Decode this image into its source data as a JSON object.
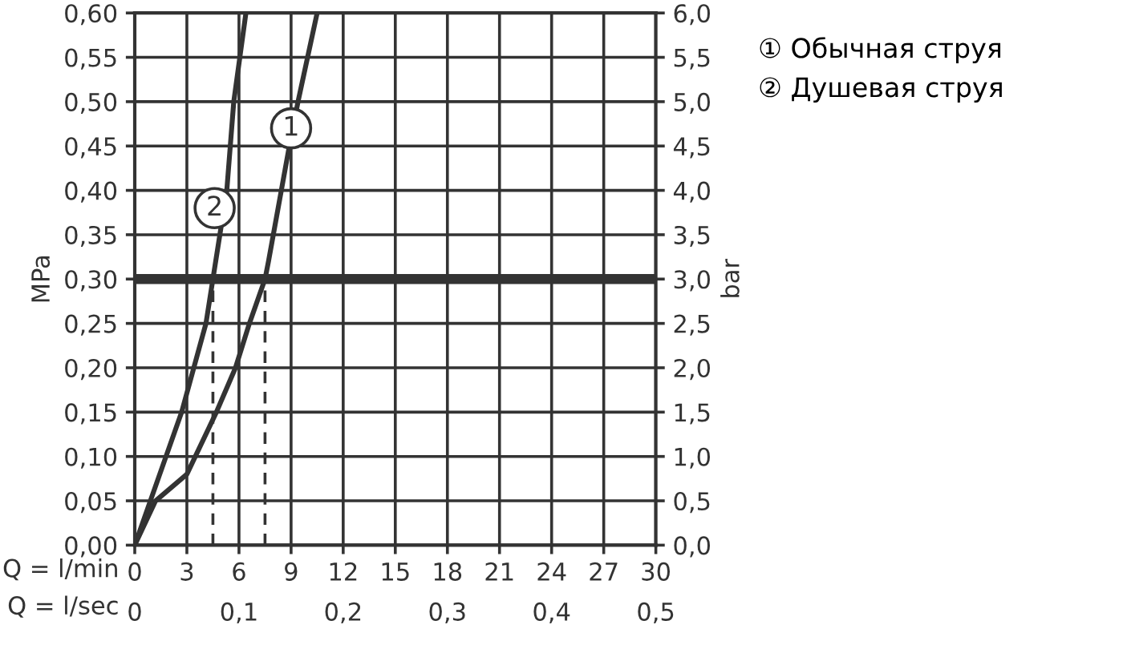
{
  "chart_data": {
    "type": "line",
    "xlabel": "Q = l/min",
    "x2label": "Q = l/sec",
    "ylabel": "MPa",
    "y2label": "bar",
    "series": [
      {
        "name": "① Обычная струя",
        "color": "#333333",
        "x": [
          0,
          1.2,
          3,
          4.7,
          5.8,
          6.6,
          7.5,
          7.7,
          8.9,
          9.4,
          10.5
        ],
        "values": [
          0,
          0.05,
          0.08,
          0.15,
          0.2,
          0.25,
          0.3,
          0.32,
          0.45,
          0.5,
          0.6
        ]
      },
      {
        "name": "② Душевая струя",
        "color": "#333333",
        "x": [
          0,
          2.7,
          4.1,
          4.5,
          5.3,
          5.7,
          6.4
        ],
        "values": [
          0,
          0.15,
          0.25,
          0.3,
          0.4,
          0.5,
          0.6
        ]
      }
    ],
    "annotations": [
      {
        "text": "1",
        "x": 9.0,
        "y": 0.47
      },
      {
        "text": "2",
        "x": 4.6,
        "y": 0.38
      }
    ],
    "ref_lines": [
      {
        "axis": "y",
        "value": 0.3,
        "color": "#333333",
        "line_style": "solid"
      },
      {
        "axis": "x",
        "value": 4.5,
        "color": "#333333",
        "line_style": "dashed"
      },
      {
        "axis": "x",
        "value": 7.5,
        "color": "#333333",
        "line_style": "dashed"
      }
    ],
    "xlim": [
      0,
      30
    ],
    "xticks": [
      0,
      3,
      6,
      9,
      12,
      15,
      18,
      21,
      24,
      27,
      30
    ],
    "x2lim": [
      0,
      0.5
    ],
    "x2ticks": [
      0,
      {
        "value": 0.1,
        "label": "0,1"
      },
      {
        "value": 0.2,
        "label": "0,2"
      },
      {
        "value": 0.3,
        "label": "0,3"
      },
      {
        "value": 0.4,
        "label": "0,4"
      },
      {
        "value": 0.5,
        "label": "0,5"
      }
    ],
    "ylim": [
      0,
      0.6
    ],
    "yticks": [
      {
        "value": 0,
        "label": "0,00"
      },
      {
        "value": 0.05,
        "label": "0,05"
      },
      {
        "value": 0.1,
        "label": "0,10"
      },
      {
        "value": 0.15,
        "label": "0,15"
      },
      {
        "value": 0.2,
        "label": "0,20"
      },
      {
        "value": 0.25,
        "label": "0,25"
      },
      {
        "value": 0.3,
        "label": "0,30"
      },
      {
        "value": 0.35,
        "label": "0,35"
      },
      {
        "value": 0.4,
        "label": "0,40"
      },
      {
        "value": 0.45,
        "label": "0,45"
      },
      {
        "value": 0.5,
        "label": "0,50"
      },
      {
        "value": 0.55,
        "label": "0,55"
      },
      {
        "value": 0.6,
        "label": "0,60"
      }
    ],
    "y2lim": [
      0,
      6
    ],
    "y2ticks": [
      {
        "value": 0,
        "label": "0,0"
      },
      {
        "value": 0.5,
        "label": "0,5"
      },
      {
        "value": 1,
        "label": "1,0"
      },
      {
        "value": 1.5,
        "label": "1,5"
      },
      {
        "value": 2,
        "label": "2,0"
      },
      {
        "value": 2.5,
        "label": "2,5"
      },
      {
        "value": 3,
        "label": "3,0"
      },
      {
        "value": 3.5,
        "label": "3,5"
      },
      {
        "value": 4,
        "label": "4,0"
      },
      {
        "value": 4.5,
        "label": "4,5"
      },
      {
        "value": 5,
        "label": "5,0"
      },
      {
        "value": 5.5,
        "label": "5,5"
      },
      {
        "value": 6,
        "label": "6,0"
      }
    ],
    "grid": true,
    "legend": "top right",
    "marker": "none",
    "line_style": "solid"
  }
}
